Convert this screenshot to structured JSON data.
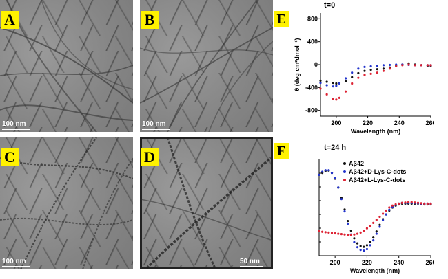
{
  "panels": [
    {
      "letter": "A",
      "scale_label": "100 nm"
    },
    {
      "letter": "B",
      "scale_label": "100 nm"
    },
    {
      "letter": "C",
      "scale_label": "100 nm"
    },
    {
      "letter": "D",
      "scale_label": "50 nm"
    }
  ],
  "chart_data": [
    {
      "type": "scatter",
      "panel_letter": "E",
      "title": "t=0",
      "xlabel": "Wavelength (nm)",
      "ylabel": "θ (deg cm²dmol⁻¹)",
      "xlim": [
        190,
        260
      ],
      "ylim": [
        -900,
        900
      ],
      "xticks": [
        200,
        220,
        240,
        260
      ],
      "yticks": [
        -800,
        -400,
        0,
        400,
        800
      ],
      "series": [
        {
          "color": "#111111",
          "x": [
            190,
            194,
            198,
            200,
            202,
            206,
            210,
            214,
            218,
            222,
            226,
            230,
            234,
            238,
            242,
            246,
            250,
            254,
            258,
            260
          ],
          "y": [
            -280,
            -300,
            -320,
            -330,
            -320,
            -290,
            -220,
            -150,
            -110,
            -90,
            -80,
            -70,
            -50,
            -20,
            0,
            20,
            0,
            -10,
            -20,
            -20
          ]
        },
        {
          "color": "#2233cc",
          "x": [
            190,
            194,
            198,
            200,
            202,
            206,
            210,
            214,
            218,
            222,
            226,
            230,
            234,
            238,
            242,
            246,
            250,
            254,
            258,
            260
          ],
          "y": [
            -320,
            -360,
            -380,
            -370,
            -330,
            -240,
            -140,
            -70,
            -40,
            -30,
            -20,
            -10,
            -5,
            0,
            0,
            -5,
            -10,
            -10,
            -10,
            -10
          ]
        },
        {
          "color": "#dd2233",
          "x": [
            190,
            194,
            198,
            200,
            202,
            206,
            210,
            214,
            218,
            222,
            226,
            230,
            234,
            238,
            242,
            246,
            250,
            254,
            258,
            260
          ],
          "y": [
            -420,
            -520,
            -600,
            -610,
            -580,
            -470,
            -330,
            -230,
            -180,
            -160,
            -140,
            -110,
            -70,
            -30,
            -10,
            0,
            -10,
            -10,
            -10,
            -10
          ]
        }
      ]
    },
    {
      "type": "scatter",
      "panel_letter": "F",
      "title": "t=24 h",
      "xlabel": "Wavelength (nm)",
      "xlim": [
        190,
        260
      ],
      "ylim": [
        -1.25,
        1.25
      ],
      "xticks": [
        200,
        220,
        240,
        260
      ],
      "series": [
        {
          "name": "Aβ42",
          "color": "#111111",
          "x": [
            190,
            192,
            194,
            196,
            198,
            200,
            202,
            204,
            206,
            208,
            210,
            212,
            214,
            216,
            218,
            220,
            222,
            224,
            226,
            228,
            230,
            232,
            234,
            236,
            238,
            240,
            242,
            244,
            246,
            248,
            250,
            252,
            254,
            256,
            258,
            260
          ],
          "y": [
            0.85,
            0.9,
            0.95,
            0.96,
            0.9,
            0.75,
            0.52,
            0.25,
            -0.05,
            -0.35,
            -0.6,
            -0.8,
            -0.93,
            -1.0,
            -1.02,
            -0.98,
            -0.9,
            -0.78,
            -0.62,
            -0.45,
            -0.3,
            -0.18,
            -0.08,
            0.0,
            0.05,
            0.08,
            0.1,
            0.1,
            0.1,
            0.1,
            0.1,
            0.1,
            0.09,
            0.08,
            0.08,
            0.08
          ]
        },
        {
          "name": "Aβ42+D-Lys-C-dots",
          "color": "#2233cc",
          "x": [
            190,
            192,
            194,
            196,
            198,
            200,
            202,
            204,
            206,
            208,
            210,
            212,
            214,
            216,
            218,
            220,
            222,
            224,
            226,
            228,
            230,
            232,
            234,
            236,
            238,
            240,
            242,
            244,
            246,
            248,
            250,
            252,
            254,
            256,
            258,
            260
          ],
          "y": [
            0.85,
            0.93,
            0.97,
            0.97,
            0.9,
            0.76,
            0.52,
            0.22,
            -0.1,
            -0.42,
            -0.7,
            -0.9,
            -1.03,
            -1.1,
            -1.12,
            -1.08,
            -0.98,
            -0.85,
            -0.68,
            -0.5,
            -0.33,
            -0.18,
            -0.06,
            0.02,
            0.07,
            0.1,
            0.12,
            0.12,
            0.12,
            0.12,
            0.12,
            0.11,
            0.1,
            0.1,
            0.1,
            0.1
          ]
        },
        {
          "name": "Aβ42+L-Lys-C-dots",
          "color": "#dd2233",
          "x": [
            190,
            192,
            194,
            196,
            198,
            200,
            202,
            204,
            206,
            208,
            210,
            212,
            214,
            216,
            218,
            220,
            222,
            224,
            226,
            228,
            230,
            232,
            234,
            236,
            238,
            240,
            242,
            244,
            246,
            248,
            250,
            252,
            254,
            256,
            258,
            260
          ],
          "y": [
            -0.6,
            -0.63,
            -0.64,
            -0.65,
            -0.66,
            -0.67,
            -0.68,
            -0.69,
            -0.7,
            -0.71,
            -0.71,
            -0.7,
            -0.68,
            -0.65,
            -0.6,
            -0.54,
            -0.48,
            -0.4,
            -0.32,
            -0.24,
            -0.16,
            -0.08,
            0.0,
            0.05,
            0.08,
            0.1,
            0.12,
            0.13,
            0.14,
            0.14,
            0.13,
            0.12,
            0.11,
            0.1,
            0.1,
            0.1
          ]
        }
      ]
    }
  ]
}
